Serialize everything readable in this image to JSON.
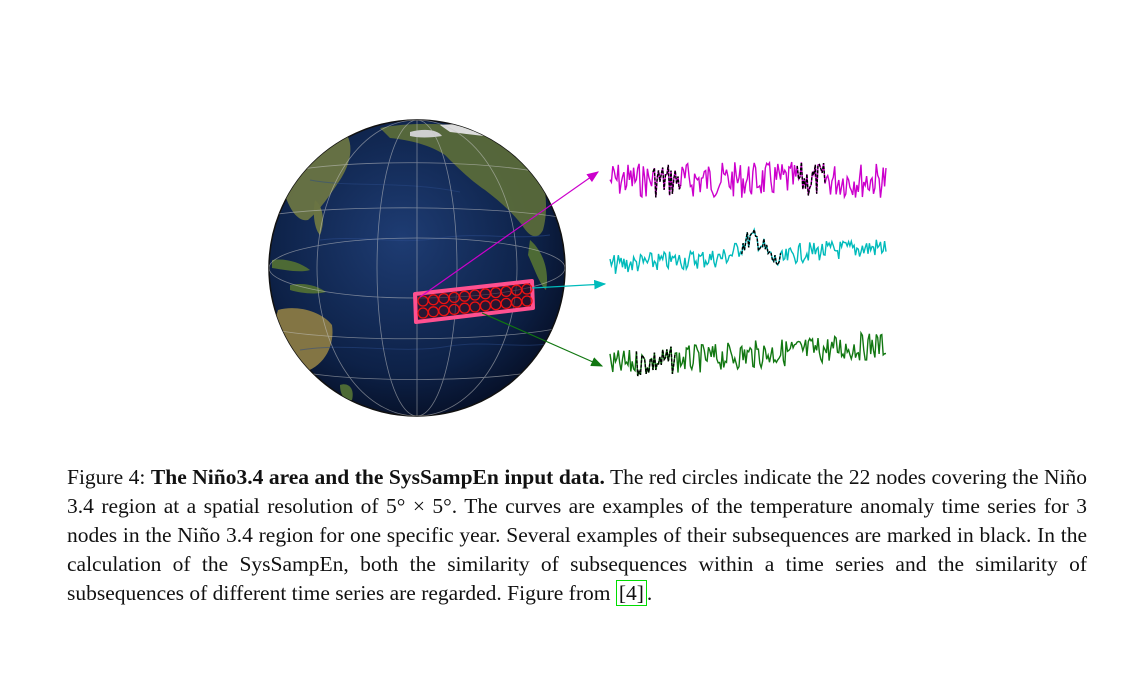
{
  "figure": {
    "label": "Figure 4:",
    "bold_title": "The Niño3.4 area and the SysSampEn input data.",
    "text_part1": " The red circles indicate the 22 nodes covering the Niño 3.4 region at a spatial resolution of 5° × 5°. The curves are examples of the temperature anomaly time series for 3 nodes in the Niño 3.4 region for one specific year. Several examples of their subsequences are marked in black. In the calculation of the SysSampEn, both the similarity of subsequences within a time series and the similarity of subsequences of different time series are regarded. Figure from ",
    "reference": "[4]",
    "text_end": "."
  },
  "colors": {
    "series_top": "#cc00cc",
    "series_middle": "#00bbbb",
    "series_bottom": "#117711",
    "subsequence": "#000000",
    "region_box": "#ff5090",
    "node_circles": "#ee1111",
    "ocean": "#0d2147",
    "reference_box": "#00dd00"
  },
  "icons": {
    "globe": "globe-icon"
  }
}
